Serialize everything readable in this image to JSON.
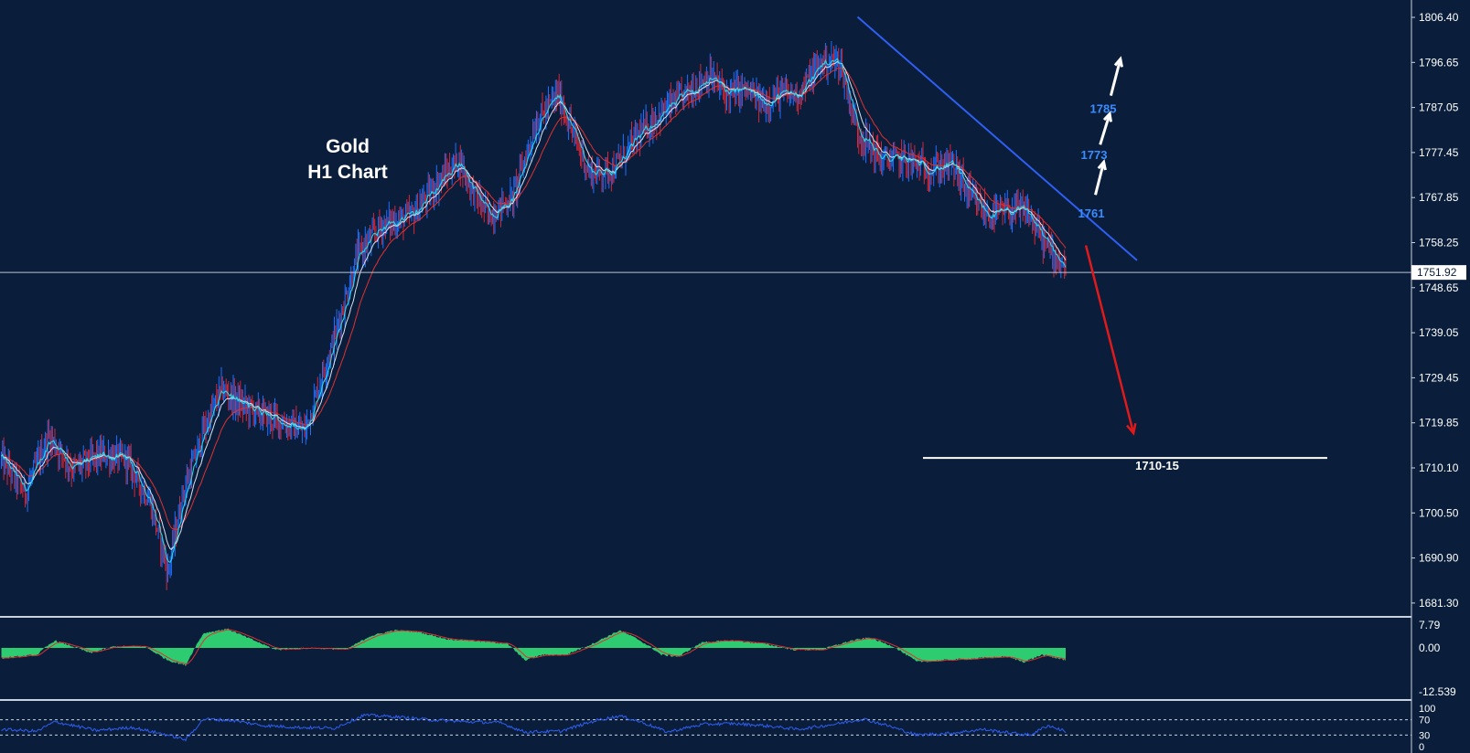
{
  "chart_data": [
    {
      "type": "candlestick",
      "title_line1": "Gold",
      "title_line2": "H1 Chart",
      "y_ticks": [
        "1806.40",
        "1796.65",
        "1787.05",
        "1777.45",
        "1767.85",
        "1758.25",
        "1748.65",
        "1739.05",
        "1729.45",
        "1719.85",
        "1710.10",
        "1700.50",
        "1690.90",
        "1681.30"
      ],
      "y_range": [
        1676.0,
        1810.0
      ],
      "current_price": "1751.92",
      "current_price_value": 1751.92,
      "price_path": [
        {
          "i": 0,
          "p": 1712
        },
        {
          "i": 20,
          "p": 1705
        },
        {
          "i": 40,
          "p": 1717
        },
        {
          "i": 60,
          "p": 1710
        },
        {
          "i": 85,
          "p": 1713
        },
        {
          "i": 105,
          "p": 1712
        },
        {
          "i": 125,
          "p": 1703
        },
        {
          "i": 140,
          "p": 1688
        },
        {
          "i": 152,
          "p": 1704
        },
        {
          "i": 170,
          "p": 1718
        },
        {
          "i": 185,
          "p": 1727
        },
        {
          "i": 200,
          "p": 1724
        },
        {
          "i": 215,
          "p": 1722
        },
        {
          "i": 235,
          "p": 1720
        },
        {
          "i": 255,
          "p": 1718
        },
        {
          "i": 280,
          "p": 1738
        },
        {
          "i": 300,
          "p": 1756
        },
        {
          "i": 320,
          "p": 1762
        },
        {
          "i": 345,
          "p": 1764
        },
        {
          "i": 370,
          "p": 1772
        },
        {
          "i": 385,
          "p": 1776
        },
        {
          "i": 395,
          "p": 1770
        },
        {
          "i": 410,
          "p": 1764
        },
        {
          "i": 430,
          "p": 1768
        },
        {
          "i": 450,
          "p": 1784
        },
        {
          "i": 468,
          "p": 1790
        },
        {
          "i": 480,
          "p": 1782
        },
        {
          "i": 495,
          "p": 1773
        },
        {
          "i": 515,
          "p": 1774
        },
        {
          "i": 535,
          "p": 1781
        },
        {
          "i": 555,
          "p": 1786
        },
        {
          "i": 575,
          "p": 1790
        },
        {
          "i": 595,
          "p": 1794
        },
        {
          "i": 610,
          "p": 1790
        },
        {
          "i": 625,
          "p": 1791
        },
        {
          "i": 640,
          "p": 1788
        },
        {
          "i": 655,
          "p": 1790
        },
        {
          "i": 670,
          "p": 1790
        },
        {
          "i": 690,
          "p": 1797
        },
        {
          "i": 705,
          "p": 1797
        },
        {
          "i": 720,
          "p": 1782
        },
        {
          "i": 740,
          "p": 1776
        },
        {
          "i": 760,
          "p": 1776
        },
        {
          "i": 780,
          "p": 1774
        },
        {
          "i": 800,
          "p": 1775
        },
        {
          "i": 815,
          "p": 1768
        },
        {
          "i": 830,
          "p": 1764
        },
        {
          "i": 848,
          "p": 1765
        },
        {
          "i": 862,
          "p": 1765
        },
        {
          "i": 878,
          "p": 1758
        },
        {
          "i": 895,
          "p": 1753
        }
      ],
      "trendline": {
        "from": {
          "i": 720,
          "p": 1806.5
        },
        "to": {
          "i": 955,
          "p": 1754.5
        }
      },
      "support_line": {
        "from_i": 775,
        "to_i": 1115,
        "p": 1712.3,
        "label": "1710-15"
      },
      "targets": [
        {
          "label": "1761",
          "p": 1764.6
        },
        {
          "label": "1773",
          "p": 1777.1
        },
        {
          "label": "1785",
          "p": 1787.0
        }
      ],
      "arrows": {
        "up": [
          {
            "from": {
              "i": 920,
              "p": 1768.5
            },
            "to": {
              "i": 927,
              "p": 1775.5
            }
          },
          {
            "from": {
              "i": 924,
              "p": 1779.2
            },
            "to": {
              "i": 932,
              "p": 1785.8
            }
          },
          {
            "from": {
              "i": 933,
              "p": 1789.7
            },
            "to": {
              "i": 941,
              "p": 1797.5
            }
          }
        ],
        "down": {
          "from": {
            "i": 912,
            "p": 1757.7
          },
          "to": {
            "i": 952,
            "p": 1717.6
          }
        }
      },
      "colors": {
        "background": "#0a1e3b",
        "bull": "#1e6fff",
        "bear": "#d6263a",
        "ma_red": "#e03030",
        "ma_cyan": "#28d6e6",
        "ma_white": "#d8e4ee",
        "trendline": "#2f5ef2",
        "target_text": "#3a8cff",
        "down_arrow": "#e01a1a",
        "axis_text": "#ffffff"
      }
    },
    {
      "type": "histogram",
      "y_ticks": [
        "7.79",
        "0.00",
        "-12.539"
      ],
      "y_range": [
        -12.539,
        7.79
      ],
      "path": [
        {
          "i": 0,
          "v": -3
        },
        {
          "i": 30,
          "v": -2
        },
        {
          "i": 45,
          "v": 2.5
        },
        {
          "i": 60,
          "v": 0.5
        },
        {
          "i": 75,
          "v": -1.5
        },
        {
          "i": 95,
          "v": 0.5
        },
        {
          "i": 120,
          "v": 0.5
        },
        {
          "i": 140,
          "v": -3.5
        },
        {
          "i": 155,
          "v": -5
        },
        {
          "i": 170,
          "v": 5
        },
        {
          "i": 190,
          "v": 6.5
        },
        {
          "i": 210,
          "v": 3
        },
        {
          "i": 230,
          "v": -0.5
        },
        {
          "i": 260,
          "v": 0
        },
        {
          "i": 290,
          "v": -0.5
        },
        {
          "i": 310,
          "v": 4
        },
        {
          "i": 330,
          "v": 6
        },
        {
          "i": 350,
          "v": 5.5
        },
        {
          "i": 375,
          "v": 3
        },
        {
          "i": 395,
          "v": 2.5
        },
        {
          "i": 425,
          "v": 1.5
        },
        {
          "i": 440,
          "v": -3.5
        },
        {
          "i": 455,
          "v": -2
        },
        {
          "i": 475,
          "v": -2
        },
        {
          "i": 495,
          "v": 1
        },
        {
          "i": 520,
          "v": 6
        },
        {
          "i": 535,
          "v": 3
        },
        {
          "i": 555,
          "v": -2
        },
        {
          "i": 570,
          "v": -2.5
        },
        {
          "i": 590,
          "v": 2
        },
        {
          "i": 615,
          "v": 2.5
        },
        {
          "i": 640,
          "v": 1.5
        },
        {
          "i": 665,
          "v": -0.5
        },
        {
          "i": 690,
          "v": -0.5
        },
        {
          "i": 715,
          "v": 2.5
        },
        {
          "i": 730,
          "v": 3.5
        },
        {
          "i": 750,
          "v": 0.5
        },
        {
          "i": 770,
          "v": -4
        },
        {
          "i": 795,
          "v": -3.5
        },
        {
          "i": 820,
          "v": -3
        },
        {
          "i": 845,
          "v": -2.5
        },
        {
          "i": 860,
          "v": -4
        },
        {
          "i": 875,
          "v": -2
        },
        {
          "i": 895,
          "v": -3.5
        }
      ],
      "colors": {
        "bar": "#2ecc71",
        "signal": "#e03030"
      }
    },
    {
      "type": "line",
      "y_ticks": [
        "100",
        "70",
        "30",
        "0"
      ],
      "y_range": [
        0,
        100
      ],
      "levels": [
        70,
        30
      ],
      "path": [
        {
          "i": 0,
          "v": 45
        },
        {
          "i": 30,
          "v": 40
        },
        {
          "i": 45,
          "v": 65
        },
        {
          "i": 60,
          "v": 55
        },
        {
          "i": 80,
          "v": 42
        },
        {
          "i": 110,
          "v": 50
        },
        {
          "i": 140,
          "v": 30
        },
        {
          "i": 155,
          "v": 18
        },
        {
          "i": 170,
          "v": 72
        },
        {
          "i": 195,
          "v": 68
        },
        {
          "i": 220,
          "v": 55
        },
        {
          "i": 250,
          "v": 50
        },
        {
          "i": 280,
          "v": 48
        },
        {
          "i": 305,
          "v": 82
        },
        {
          "i": 330,
          "v": 78
        },
        {
          "i": 360,
          "v": 70
        },
        {
          "i": 390,
          "v": 65
        },
        {
          "i": 420,
          "v": 62
        },
        {
          "i": 440,
          "v": 38
        },
        {
          "i": 470,
          "v": 40
        },
        {
          "i": 500,
          "v": 68
        },
        {
          "i": 520,
          "v": 80
        },
        {
          "i": 540,
          "v": 62
        },
        {
          "i": 560,
          "v": 38
        },
        {
          "i": 590,
          "v": 58
        },
        {
          "i": 615,
          "v": 60
        },
        {
          "i": 640,
          "v": 55
        },
        {
          "i": 670,
          "v": 45
        },
        {
          "i": 700,
          "v": 58
        },
        {
          "i": 725,
          "v": 72
        },
        {
          "i": 745,
          "v": 55
        },
        {
          "i": 770,
          "v": 30
        },
        {
          "i": 800,
          "v": 35
        },
        {
          "i": 825,
          "v": 45
        },
        {
          "i": 850,
          "v": 35
        },
        {
          "i": 865,
          "v": 30
        },
        {
          "i": 880,
          "v": 55
        },
        {
          "i": 895,
          "v": 40
        }
      ],
      "colors": {
        "line": "#2f5ef2",
        "levels": "#c8d2de"
      }
    }
  ]
}
